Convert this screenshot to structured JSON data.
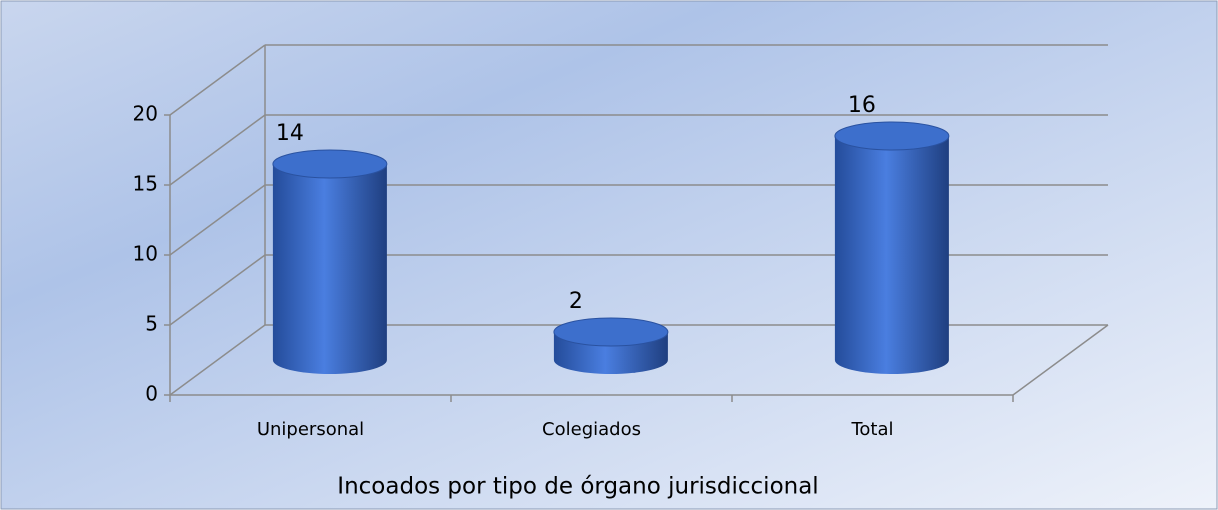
{
  "chart_data": {
    "type": "bar3d_cylinder",
    "x_label": "Incoados por tipo de órgano jurisdiccional",
    "categories": [
      "Unipersonal",
      "Colegiados",
      "Total"
    ],
    "values": [
      14,
      2,
      16
    ],
    "color": "#3d6fcc",
    "ylim": [
      0,
      20
    ],
    "yticks": [
      0,
      5,
      10,
      15,
      20
    ],
    "grid": true
  }
}
